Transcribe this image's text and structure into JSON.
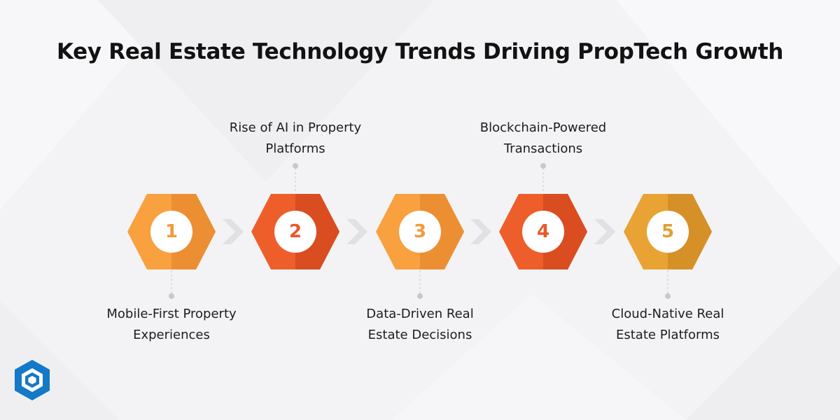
{
  "title": "Key Real Estate Technology Trends Driving PropTech Growth",
  "colors": {
    "background": "#f3f3f5",
    "orange_light": "#f9a03f",
    "orange_red": "#ee5e2b",
    "amber": "#e9a334",
    "connector": "#c8c8c8",
    "arrow": "#e1e1e4",
    "logo_blue": "#1479c6"
  },
  "steps": [
    {
      "number": "1",
      "label": "Mobile-First Property\nExperiences",
      "label_position": "below",
      "color": "#f9a03f",
      "shade": "#ec8f33",
      "text_color": "#f29a3c"
    },
    {
      "number": "2",
      "label": "Rise of AI in Property\nPlatforms",
      "label_position": "above",
      "color": "#ee5e2b",
      "shade": "#d94d21",
      "text_color": "#e8592a"
    },
    {
      "number": "3",
      "label": "Data-Driven Real\nEstate Decisions",
      "label_position": "below",
      "color": "#f9a03f",
      "shade": "#ec8f33",
      "text_color": "#f29a3c"
    },
    {
      "number": "4",
      "label": "Blockchain-Powered\nTransactions",
      "label_position": "above",
      "color": "#ee5e2b",
      "shade": "#d94d21",
      "text_color": "#e8592a"
    },
    {
      "number": "5",
      "label": "Cloud-Native Real\nEstate Platforms",
      "label_position": "below",
      "color": "#e9a334",
      "shade": "#d69028",
      "text_color": "#e0a032"
    }
  ],
  "icons": {
    "arrow": "chevron-right-icon",
    "logo": "hexagon-logo-icon"
  }
}
